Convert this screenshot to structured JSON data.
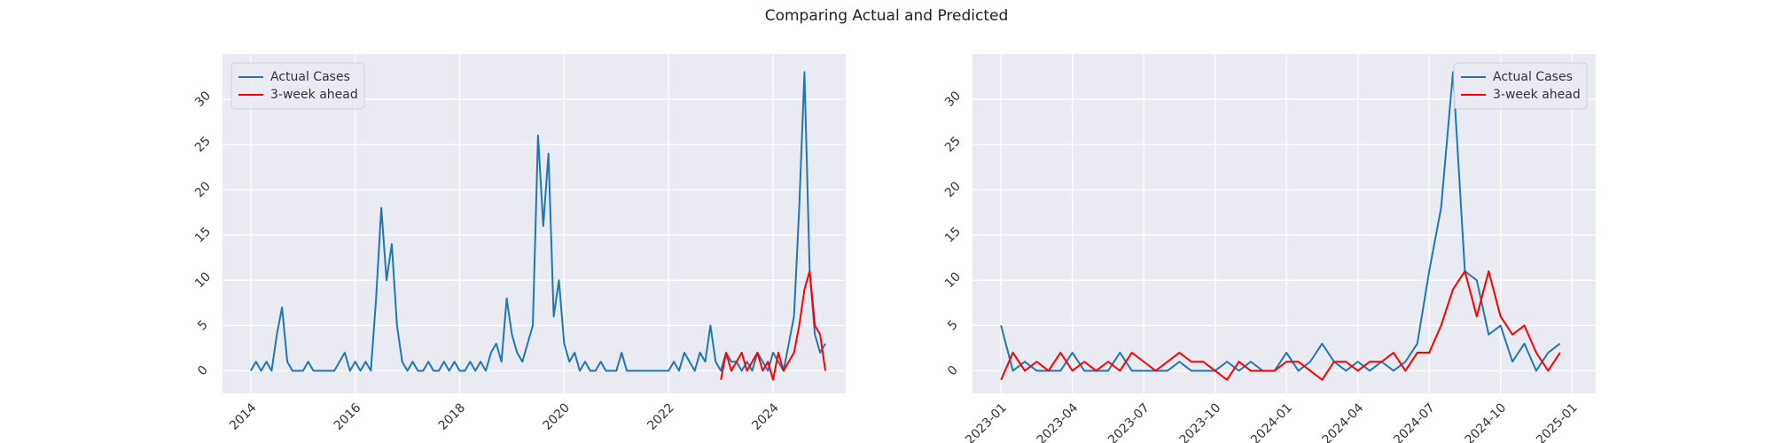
{
  "title": "Comparing Actual and Predicted",
  "chart_data": [
    {
      "type": "line",
      "legend": "upper left",
      "grid": true,
      "xlim": [
        2013.46,
        2025.39
      ],
      "ylim": [
        -2.5,
        35
      ],
      "xticks": [
        2014,
        2016,
        2018,
        2020,
        2022,
        2024
      ],
      "yticks": [
        0,
        5,
        10,
        15,
        20,
        25,
        30
      ],
      "series": [
        {
          "name": "Actual Cases",
          "color": "#1f77b4",
          "x": [
            2014.0,
            2014.1,
            2014.2,
            2014.3,
            2014.4,
            2014.5,
            2014.6,
            2014.7,
            2014.8,
            2014.9,
            2015.0,
            2015.1,
            2015.2,
            2015.3,
            2015.4,
            2015.5,
            2015.6,
            2015.7,
            2015.8,
            2015.9,
            2016.0,
            2016.1,
            2016.2,
            2016.3,
            2016.4,
            2016.5,
            2016.6,
            2016.7,
            2016.8,
            2016.9,
            2017.0,
            2017.1,
            2017.2,
            2017.3,
            2017.4,
            2017.5,
            2017.6,
            2017.7,
            2017.8,
            2017.9,
            2018.0,
            2018.1,
            2018.2,
            2018.3,
            2018.4,
            2018.5,
            2018.6,
            2018.7,
            2018.8,
            2018.9,
            2019.0,
            2019.1,
            2019.2,
            2019.3,
            2019.4,
            2019.5,
            2019.6,
            2019.7,
            2019.8,
            2019.9,
            2020.0,
            2020.1,
            2020.2,
            2020.3,
            2020.4,
            2020.5,
            2020.6,
            2020.7,
            2020.8,
            2020.9,
            2021.0,
            2021.1,
            2021.2,
            2021.3,
            2021.4,
            2021.5,
            2021.6,
            2021.7,
            2021.8,
            2021.9,
            2022.0,
            2022.1,
            2022.2,
            2022.3,
            2022.4,
            2022.5,
            2022.6,
            2022.7,
            2022.8,
            2022.9,
            2023.0,
            2023.1,
            2023.2,
            2023.3,
            2023.4,
            2023.5,
            2023.6,
            2023.7,
            2023.8,
            2023.9,
            2024.0,
            2024.1,
            2024.2,
            2024.3,
            2024.4,
            2024.5,
            2024.6,
            2024.7,
            2024.8,
            2024.9,
            2025.0
          ],
          "values": [
            0,
            1,
            0,
            1,
            0,
            4,
            7,
            1,
            0,
            0,
            0,
            1,
            0,
            0,
            0,
            0,
            0,
            1,
            2,
            0,
            1,
            0,
            1,
            0,
            8,
            18,
            10,
            14,
            5,
            1,
            0,
            1,
            0,
            0,
            1,
            0,
            0,
            1,
            0,
            1,
            0,
            0,
            1,
            0,
            1,
            0,
            2,
            3,
            1,
            8,
            4,
            2,
            1,
            3,
            5,
            26,
            16,
            24,
            6,
            10,
            3,
            1,
            2,
            0,
            1,
            0,
            0,
            1,
            0,
            0,
            0,
            2,
            0,
            0,
            0,
            0,
            0,
            0,
            0,
            0,
            0,
            1,
            0,
            2,
            1,
            0,
            2,
            1,
            5,
            1,
            0,
            2,
            1,
            1,
            0,
            1,
            0,
            2,
            1,
            0,
            2,
            1,
            0,
            3,
            6,
            18,
            33,
            11,
            4,
            2,
            3
          ]
        },
        {
          "name": "3-week ahead",
          "color": "red",
          "x": [
            2023.0,
            2023.1,
            2023.2,
            2023.3,
            2023.4,
            2023.5,
            2023.6,
            2023.7,
            2023.8,
            2023.9,
            2024.0,
            2024.1,
            2024.2,
            2024.3,
            2024.4,
            2024.5,
            2024.6,
            2024.7,
            2024.8,
            2024.9,
            2025.0
          ],
          "values": [
            -1,
            2,
            0,
            1,
            2,
            0,
            1,
            2,
            0,
            1,
            -1,
            2,
            0,
            1,
            2,
            5,
            9,
            11,
            5,
            4,
            0
          ]
        }
      ]
    },
    {
      "type": "line",
      "legend": "upper right",
      "grid": true,
      "xlim": [
        -1.2,
        25
      ],
      "ylim": [
        -2.5,
        35
      ],
      "xticks": [
        {
          "value": 0,
          "label": "2023-01"
        },
        {
          "value": 3,
          "label": "2023-04"
        },
        {
          "value": 6,
          "label": "2023-07"
        },
        {
          "value": 9,
          "label": "2023-10"
        },
        {
          "value": 12,
          "label": "2024-01"
        },
        {
          "value": 15,
          "label": "2024-04"
        },
        {
          "value": 18,
          "label": "2024-07"
        },
        {
          "value": 21,
          "label": "2024-10"
        },
        {
          "value": 24,
          "label": "2025-01"
        }
      ],
      "yticks": [
        0,
        5,
        10,
        15,
        20,
        25,
        30
      ],
      "series": [
        {
          "name": "Actual Cases",
          "color": "#1f77b4",
          "x": [
            0,
            0.5,
            1,
            1.5,
            2,
            2.5,
            3,
            3.5,
            4,
            4.5,
            5,
            5.5,
            6,
            6.5,
            7,
            7.5,
            8,
            8.5,
            9,
            9.5,
            10,
            10.5,
            11,
            11.5,
            12,
            12.5,
            13,
            13.5,
            14,
            14.5,
            15,
            15.5,
            16,
            16.5,
            17,
            17.5,
            18,
            18.5,
            19,
            19.5,
            20,
            20.5,
            21,
            21.5,
            22,
            22.5,
            23,
            23.5
          ],
          "values": [
            5,
            0,
            1,
            0,
            0,
            0,
            2,
            0,
            0,
            0,
            2,
            0,
            0,
            0,
            0,
            1,
            0,
            0,
            0,
            1,
            0,
            1,
            0,
            0,
            2,
            0,
            1,
            3,
            1,
            0,
            1,
            0,
            1,
            0,
            1,
            3,
            11,
            18,
            33,
            11,
            10,
            4,
            5,
            1,
            3,
            0,
            2,
            3
          ]
        },
        {
          "name": "3-week ahead",
          "color": "red",
          "x": [
            0,
            0.5,
            1,
            1.5,
            2,
            2.5,
            3,
            3.5,
            4,
            4.5,
            5,
            5.5,
            6,
            6.5,
            7,
            7.5,
            8,
            8.5,
            9,
            9.5,
            10,
            10.5,
            11,
            11.5,
            12,
            12.5,
            13,
            13.5,
            14,
            14.5,
            15,
            15.5,
            16,
            16.5,
            17,
            17.5,
            18,
            18.5,
            19,
            19.5,
            20,
            20.5,
            21,
            21.5,
            22,
            22.5,
            23,
            23.5
          ],
          "values": [
            -1,
            2,
            0,
            1,
            0,
            2,
            0,
            1,
            0,
            1,
            0,
            2,
            1,
            0,
            1,
            2,
            1,
            1,
            0,
            -1,
            1,
            0,
            0,
            0,
            1,
            1,
            0,
            -1,
            1,
            1,
            0,
            1,
            1,
            2,
            0,
            2,
            2,
            5,
            9,
            11,
            6,
            11,
            6,
            4,
            5,
            2,
            0,
            2
          ]
        }
      ]
    }
  ]
}
